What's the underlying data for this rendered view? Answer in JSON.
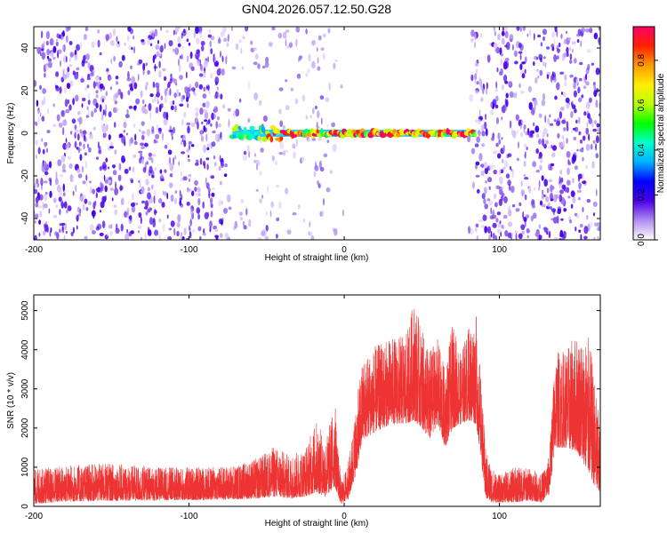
{
  "title": "GN04.2026.057.12.50.G28",
  "chart_data": [
    {
      "type": "heatmap",
      "xlabel": "Height of straight line (km)",
      "ylabel": "Frequency (Hz)",
      "xlim": [
        -200,
        165
      ],
      "ylim": [
        -50,
        50
      ],
      "xticks": [
        -200,
        -100,
        0,
        100
      ],
      "yticks": [
        -40,
        -20,
        0,
        20,
        40
      ],
      "colorbar": {
        "label": "Normalized spectral amplitude",
        "range": [
          0,
          0.95
        ],
        "ticks": [
          "0.0",
          "0.2",
          "0.4",
          "0.6",
          "0.8"
        ],
        "stops": [
          "#ffffff",
          "#b08cf0",
          "#4a00e8",
          "#0000ff",
          "#00b0ff",
          "#00ffcc",
          "#00ff00",
          "#b8ff00",
          "#ffee00",
          "#ff9900",
          "#ff2200",
          "#ff0066"
        ]
      },
      "signal_line": {
        "x_start": -72,
        "x_end": 85,
        "frequency": 0
      }
    },
    {
      "type": "line",
      "xlabel": "Height of straight line (km)",
      "ylabel": "SNR (10 * v/v)",
      "xlim": [
        -200,
        165
      ],
      "ylim": [
        0,
        5400
      ],
      "xticks": [
        -200,
        -100,
        0,
        100
      ],
      "yticks": [
        0,
        1000,
        2000,
        3000,
        4000,
        5000
      ],
      "color": "#ee3333",
      "envelope": {
        "x": [
          -200,
          -180,
          -150,
          -120,
          -90,
          -70,
          -55,
          -45,
          -35,
          -25,
          -18,
          -12,
          -6,
          -2,
          3,
          8,
          12,
          20,
          30,
          40,
          45,
          50,
          55,
          60,
          65,
          70,
          75,
          80,
          85,
          88,
          91,
          95,
          100,
          110,
          120,
          127,
          132,
          136,
          142,
          150,
          158,
          165
        ],
        "low": [
          60,
          120,
          140,
          150,
          160,
          180,
          200,
          250,
          200,
          250,
          350,
          250,
          500,
          50,
          200,
          900,
          1700,
          1900,
          2100,
          2100,
          2200,
          2000,
          1700,
          2100,
          1500,
          2000,
          2100,
          2200,
          2100,
          1300,
          200,
          100,
          100,
          100,
          150,
          100,
          300,
          1500,
          1500,
          1400,
          800,
          200
        ],
        "high": [
          950,
          1050,
          1100,
          1000,
          1000,
          1050,
          1250,
          1550,
          1300,
          1500,
          2200,
          1700,
          2700,
          600,
          1200,
          2700,
          3800,
          4100,
          4300,
          4400,
          5300,
          4500,
          4000,
          4300,
          3500,
          4700,
          3900,
          4600,
          4900,
          3300,
          1500,
          1000,
          800,
          1000,
          1000,
          800,
          1300,
          4000,
          4000,
          4400,
          4300,
          2000
        ]
      }
    }
  ]
}
